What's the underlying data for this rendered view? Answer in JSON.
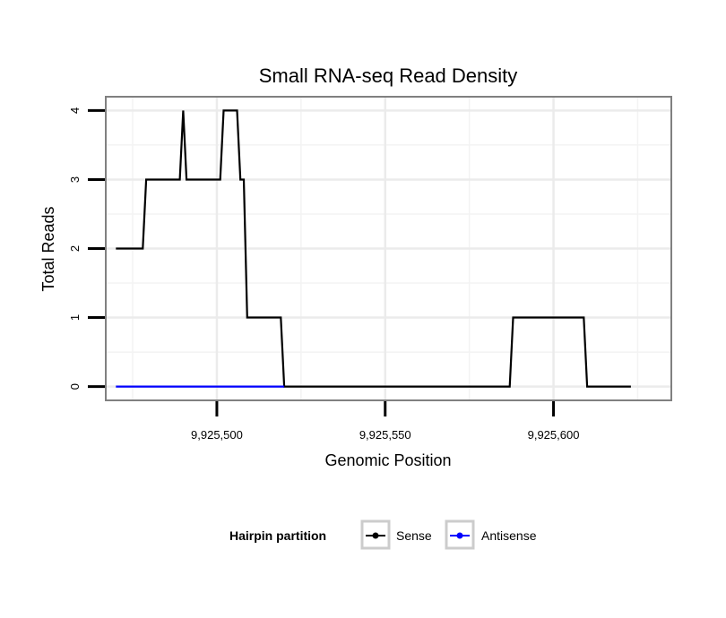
{
  "chart_data": {
    "type": "line",
    "title": "Small RNA-seq Read Density",
    "xlabel": "Genomic Position",
    "ylabel": "Total Reads",
    "xlim": [
      9925467,
      9925635
    ],
    "ylim": [
      -0.2,
      4.2
    ],
    "xticks": [
      9925500,
      9925550,
      9925600
    ],
    "xtick_labels": [
      "9,925,500",
      "9,925,550",
      "9,925,600"
    ],
    "yticks": [
      0,
      1,
      2,
      3,
      4
    ],
    "ytick_labels": [
      "0",
      "1",
      "2",
      "3",
      "4"
    ],
    "grid": true,
    "legend": {
      "title": "Hairpin partition",
      "position": "bottom",
      "entries": [
        {
          "name": "Sense",
          "color": "#000000"
        },
        {
          "name": "Antisense",
          "color": "#0000ff"
        }
      ]
    },
    "series": [
      {
        "name": "Sense",
        "color": "#000000",
        "x": [
          9925470,
          9925478,
          9925479,
          9925480,
          9925489,
          9925490,
          9925491,
          9925492,
          9925501,
          9925502,
          9925503,
          9925506,
          9925507,
          9925508,
          9925509,
          9925510,
          9925519,
          9925520,
          9925587,
          9925588,
          9925609,
          9925610,
          9925623
        ],
        "y": [
          2,
          2,
          3,
          3,
          3,
          4,
          3,
          3,
          3,
          4,
          4,
          4,
          3,
          3,
          1,
          1,
          1,
          0,
          0,
          1,
          1,
          0,
          0
        ]
      },
      {
        "name": "Antisense",
        "color": "#0000ff",
        "x": [
          9925470,
          9925520
        ],
        "y": [
          0,
          0
        ]
      }
    ]
  }
}
